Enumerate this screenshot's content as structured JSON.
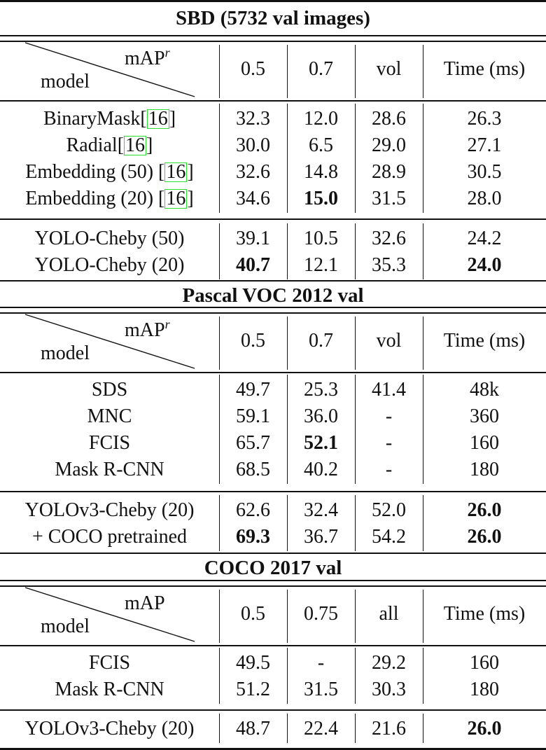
{
  "sections": [
    {
      "title": "SBD (5732 val images)",
      "header": {
        "metric": "mAP",
        "metric_sup": "r",
        "model": "model",
        "cols": [
          "0.5",
          "0.7",
          "vol",
          "Time (ms)"
        ]
      },
      "groups": [
        [
          {
            "name": "BinaryMask",
            "cite": "16",
            "cite_sep": "",
            "vals": [
              "32.3",
              "12.0",
              "28.6",
              "26.3"
            ],
            "bold": [
              false,
              false,
              false,
              false
            ]
          },
          {
            "name": "Radial",
            "cite": "16",
            "cite_sep": "",
            "vals": [
              "30.0",
              "6.5",
              "29.0",
              "27.1"
            ],
            "bold": [
              false,
              false,
              false,
              false
            ]
          },
          {
            "name": "Embedding (50)",
            "cite": "16",
            "cite_sep": " ",
            "vals": [
              "32.6",
              "14.8",
              "28.9",
              "30.5"
            ],
            "bold": [
              false,
              false,
              false,
              false
            ]
          },
          {
            "name": "Embedding (20)",
            "cite": "16",
            "cite_sep": " ",
            "vals": [
              "34.6",
              "15.0",
              "31.5",
              "28.0"
            ],
            "bold": [
              false,
              true,
              false,
              false
            ]
          }
        ],
        [
          {
            "name": "YOLO-Cheby (50)",
            "vals": [
              "39.1",
              "10.5",
              "32.6",
              "24.2"
            ],
            "bold": [
              false,
              false,
              false,
              false
            ]
          },
          {
            "name": "YOLO-Cheby (20)",
            "vals": [
              "40.7",
              "12.1",
              "35.3",
              "24.0"
            ],
            "bold": [
              true,
              false,
              false,
              true
            ]
          }
        ]
      ]
    },
    {
      "title": "Pascal VOC 2012 val",
      "header": {
        "metric": "mAP",
        "metric_sup": "r",
        "model": "model",
        "cols": [
          "0.5",
          "0.7",
          "vol",
          "Time (ms)"
        ]
      },
      "groups": [
        [
          {
            "name": "SDS",
            "vals": [
              "49.7",
              "25.3",
              "41.4",
              "48k"
            ],
            "bold": [
              false,
              false,
              false,
              false
            ]
          },
          {
            "name": "MNC",
            "vals": [
              "59.1",
              "36.0",
              "-",
              "360"
            ],
            "bold": [
              false,
              false,
              false,
              false
            ]
          },
          {
            "name": "FCIS",
            "vals": [
              "65.7",
              "52.1",
              "-",
              "160"
            ],
            "bold": [
              false,
              true,
              false,
              false
            ]
          },
          {
            "name": "Mask R-CNN",
            "vals": [
              "68.5",
              "40.2",
              "-",
              "180"
            ],
            "bold": [
              false,
              false,
              false,
              false
            ]
          }
        ],
        [
          {
            "name": "YOLOv3-Cheby (20)",
            "vals": [
              "62.6",
              "32.4",
              "52.0",
              "26.0"
            ],
            "bold": [
              false,
              false,
              false,
              true
            ]
          },
          {
            "name": "+ COCO pretrained",
            "vals": [
              "69.3",
              "36.7",
              "54.2",
              "26.0"
            ],
            "bold": [
              true,
              false,
              false,
              true
            ]
          }
        ]
      ]
    },
    {
      "title": "COCO 2017 val",
      "header": {
        "metric": "mAP",
        "metric_sup": "",
        "model": "model",
        "cols": [
          "0.5",
          "0.75",
          "all",
          "Time (ms)"
        ]
      },
      "groups": [
        [
          {
            "name": "FCIS",
            "vals": [
              "49.5",
              "-",
              "29.2",
              "160"
            ],
            "bold": [
              false,
              false,
              false,
              false
            ]
          },
          {
            "name": "Mask R-CNN",
            "vals": [
              "51.2",
              "31.5",
              "30.3",
              "180"
            ],
            "bold": [
              false,
              false,
              false,
              false
            ]
          }
        ],
        [
          {
            "name": "YOLOv3-Cheby (20)",
            "vals": [
              "48.7",
              "22.4",
              "21.6",
              "26.0"
            ],
            "bold": [
              false,
              false,
              false,
              true
            ]
          }
        ]
      ]
    }
  ],
  "colors": {
    "cite_box": "#2ee02e",
    "text": "#111111"
  }
}
